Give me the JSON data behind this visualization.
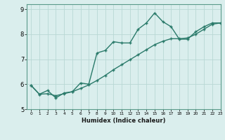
{
  "xlabel": "Humidex (Indice chaleur)",
  "xlim": [
    -0.5,
    23
  ],
  "ylim": [
    5,
    9.2
  ],
  "yticks": [
    5,
    6,
    7,
    8,
    9
  ],
  "xticks": [
    0,
    1,
    2,
    3,
    4,
    5,
    6,
    7,
    8,
    9,
    10,
    11,
    12,
    13,
    14,
    15,
    16,
    17,
    18,
    19,
    20,
    21,
    22,
    23
  ],
  "line_color": "#2a7a6a",
  "bg_color": "#daeeed",
  "grid_color": "#b8d8d4",
  "line1_x": [
    0,
    1,
    2,
    3,
    4,
    5,
    6,
    7,
    8,
    9,
    10,
    11,
    12,
    13,
    14,
    15,
    16,
    17,
    18,
    19,
    20,
    21,
    22,
    23
  ],
  "line1_y": [
    5.95,
    5.6,
    5.75,
    5.45,
    5.65,
    5.7,
    6.05,
    6.0,
    7.25,
    7.35,
    7.7,
    7.65,
    7.65,
    8.2,
    8.45,
    8.85,
    8.5,
    8.3,
    7.8,
    7.8,
    8.1,
    8.3,
    8.45,
    8.45
  ],
  "line2_x": [
    0,
    1,
    2,
    3,
    4,
    5,
    6,
    7,
    8,
    9,
    10,
    11,
    12,
    13,
    14,
    15,
    16,
    17,
    18,
    19,
    20,
    21,
    22,
    23
  ],
  "line2_y": [
    5.95,
    5.6,
    5.62,
    5.54,
    5.62,
    5.7,
    5.83,
    5.97,
    6.15,
    6.35,
    6.58,
    6.78,
    6.98,
    7.18,
    7.38,
    7.58,
    7.72,
    7.82,
    7.82,
    7.85,
    8.0,
    8.2,
    8.4,
    8.45
  ],
  "marker_size": 2.5,
  "linewidth": 1.0
}
